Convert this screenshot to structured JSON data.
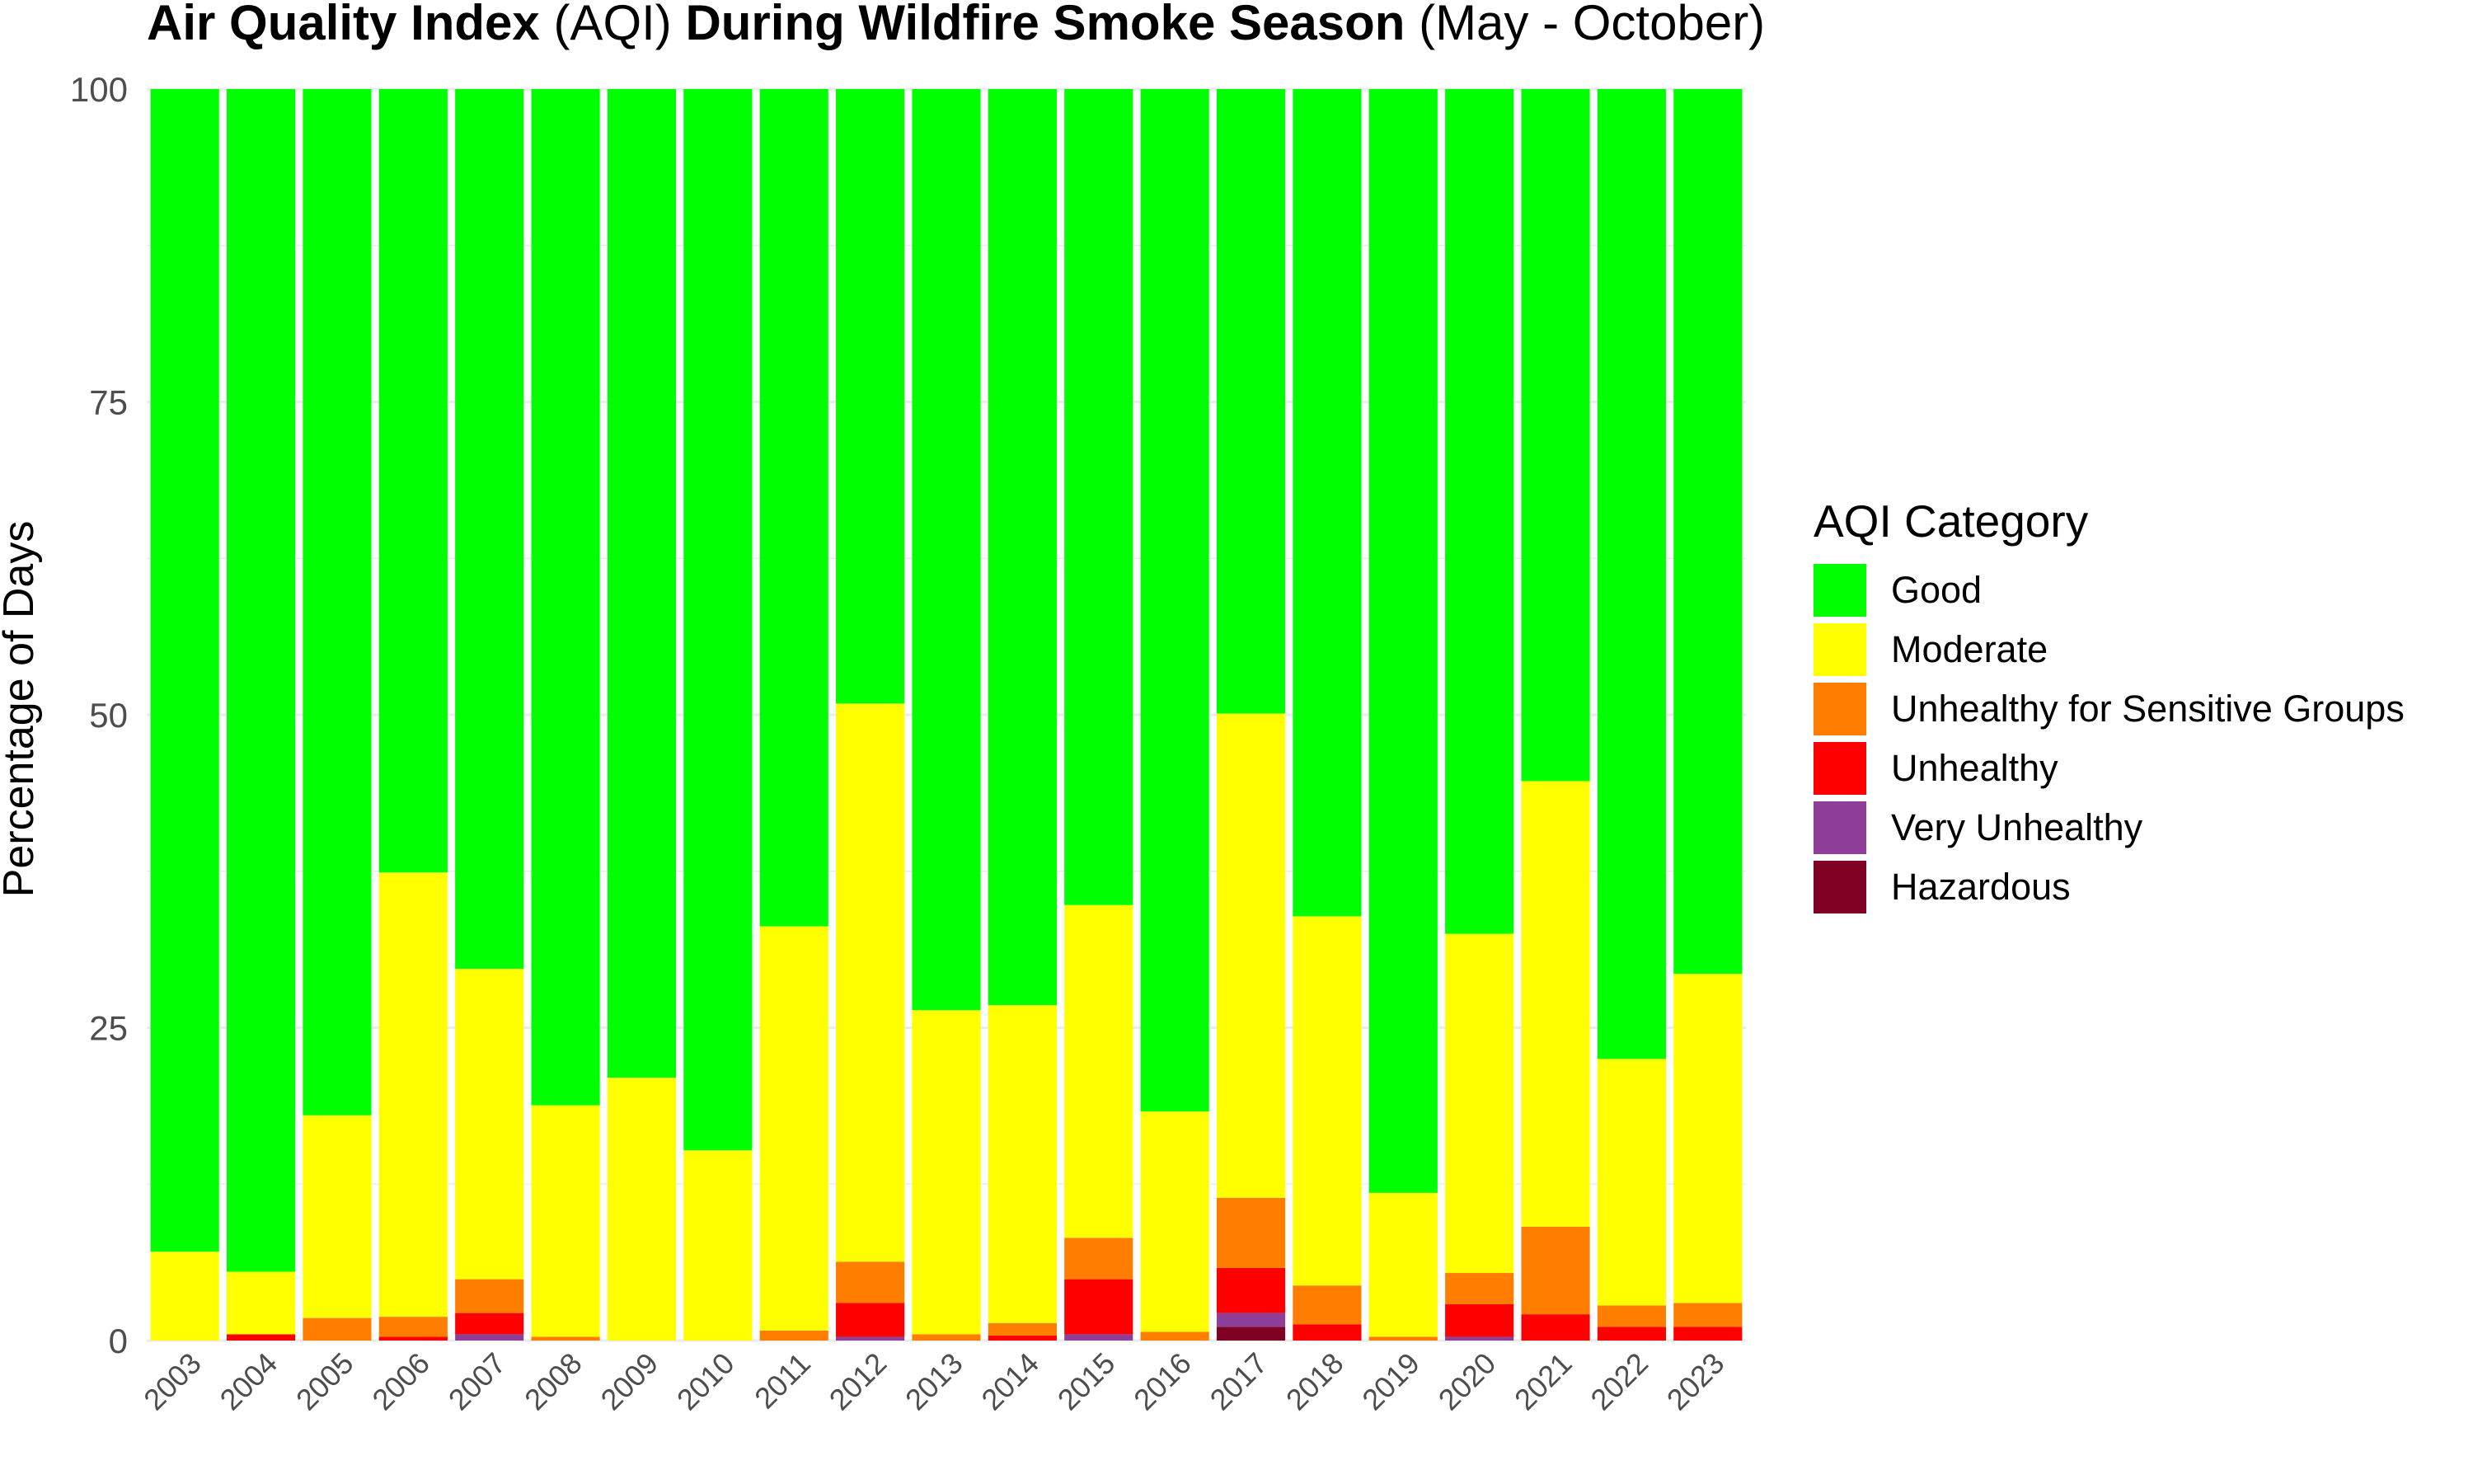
{
  "title": {
    "parts": [
      {
        "text": "Air Quality Index",
        "bold": true
      },
      {
        "text": " (AQI) ",
        "bold": false
      },
      {
        "text": "During Wildfire Smoke Season",
        "bold": true
      },
      {
        "text": " (May - October)",
        "bold": false
      }
    ]
  },
  "legend": {
    "title": "AQI Category",
    "items": [
      {
        "label": "Good",
        "color": "#00FF00"
      },
      {
        "label": "Moderate",
        "color": "#FFFF00"
      },
      {
        "label": "Unhealthy for Sensitive Groups",
        "color": "#FF7E00"
      },
      {
        "label": "Unhealthy",
        "color": "#FF0000"
      },
      {
        "label": "Very Unhealthy",
        "color": "#8F3F97"
      },
      {
        "label": "Hazardous",
        "color": "#7E0023"
      }
    ]
  },
  "chart_data": {
    "type": "bar",
    "stacked": true,
    "title": "Air Quality Index (AQI) During Wildfire Smoke Season (May - October)",
    "xlabel": "",
    "ylabel": "Percentage of Days",
    "ylim": [
      0,
      100
    ],
    "yticks": [
      0,
      25,
      50,
      75,
      100
    ],
    "grid": true,
    "legend_position": "right",
    "categories": [
      "2003",
      "2004",
      "2005",
      "2006",
      "2007",
      "2008",
      "2009",
      "2010",
      "2011",
      "2012",
      "2013",
      "2014",
      "2015",
      "2016",
      "2017",
      "2018",
      "2019",
      "2020",
      "2021",
      "2022",
      "2023"
    ],
    "series": [
      {
        "name": "Hazardous",
        "color": "#7E0023",
        "values": [
          0,
          0,
          0,
          0,
          0,
          0,
          0,
          0,
          0,
          0,
          0,
          0,
          0,
          0,
          1.1,
          0,
          0,
          0,
          0,
          0,
          0
        ]
      },
      {
        "name": "Very Unhealthy",
        "color": "#8F3F97",
        "values": [
          0,
          0,
          0,
          0,
          0.5,
          0,
          0,
          0,
          0,
          0.3,
          0,
          0,
          0.5,
          0,
          1.1,
          0,
          0,
          0.3,
          0,
          0,
          0
        ]
      },
      {
        "name": "Unhealthy",
        "color": "#FF0000",
        "values": [
          0,
          0.5,
          0,
          0.3,
          1.7,
          0,
          0,
          0,
          0,
          2.7,
          0,
          0.4,
          4.4,
          0,
          3.6,
          1.3,
          0,
          2.6,
          2.1,
          1.1,
          1.1
        ]
      },
      {
        "name": "Unhealthy for Sensitive Groups",
        "color": "#FF7E00",
        "values": [
          0,
          0,
          1.8,
          1.6,
          2.7,
          0.3,
          0,
          0,
          0.8,
          3.3,
          0.5,
          1.0,
          3.3,
          0.7,
          5.6,
          3.1,
          0.3,
          2.5,
          7.0,
          1.7,
          1.9
        ]
      },
      {
        "name": "Moderate",
        "color": "#FFFF00",
        "values": [
          7.1,
          5.0,
          16.2,
          35.5,
          24.8,
          18.5,
          21.0,
          15.2,
          32.3,
          44.6,
          25.9,
          25.4,
          26.6,
          17.6,
          38.7,
          29.5,
          11.5,
          27.1,
          35.6,
          19.7,
          26.3
        ]
      },
      {
        "name": "Good",
        "color": "#00FF00",
        "values": [
          92.9,
          94.5,
          82.0,
          62.6,
          70.3,
          81.2,
          79.0,
          84.8,
          66.9,
          49.1,
          73.6,
          73.2,
          65.2,
          81.7,
          49.9,
          66.1,
          88.2,
          67.5,
          55.3,
          77.5,
          70.7
        ]
      }
    ]
  }
}
